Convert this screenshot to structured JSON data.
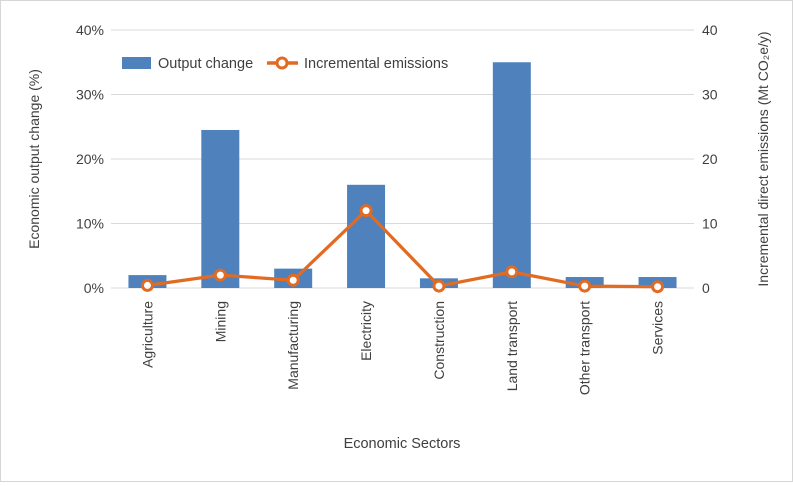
{
  "chart_data": {
    "type": "bar",
    "subtype": "bar-line-combo-dual-axis",
    "title": "",
    "categories": [
      "Agriculture",
      "Mining",
      "Manufacturing",
      "Electricity",
      "Construction",
      "Land transport",
      "Other transport",
      "Services"
    ],
    "series": [
      {
        "name": "Output change",
        "type": "bar",
        "axis": "left",
        "color": "#4F81BD",
        "values": [
          2,
          24.5,
          3,
          16,
          1.5,
          35,
          1.7,
          1.7
        ]
      },
      {
        "name": "Incremental emissions",
        "type": "line",
        "axis": "right",
        "color": "#E26B23",
        "marker": "open-circle",
        "values": [
          0.4,
          2,
          1.2,
          12,
          0.3,
          2.5,
          0.3,
          0.2
        ]
      }
    ],
    "left_axis": {
      "label": "Economic output change (%)",
      "tick_labels": [
        "0%",
        "10%",
        "20%",
        "30%",
        "40%"
      ],
      "min": 0,
      "max": 40
    },
    "right_axis": {
      "label": "Incremental direct emissions (Mt CO₂e/y)",
      "tick_labels": [
        "0",
        "10",
        "20",
        "30",
        "40"
      ],
      "min": 0,
      "max": 40
    },
    "x_axis": {
      "label": "Economic Sectors"
    },
    "legend": {
      "position": "top",
      "items": [
        "Output change",
        "Incremental emissions"
      ]
    },
    "grid": true
  },
  "colors": {
    "bar": "#4F81BD",
    "line": "#E26B23",
    "grid": "#D9D9D9",
    "text": "#3F3F3F",
    "background": "#FFFFFF",
    "frame_border": "#D6D6D6"
  }
}
